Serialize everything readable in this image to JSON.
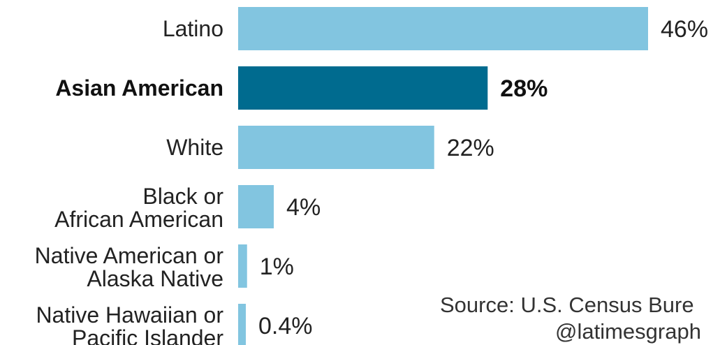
{
  "chart_data": {
    "type": "bar",
    "orientation": "horizontal",
    "categories": [
      [
        "Latino"
      ],
      [
        "Asian American"
      ],
      [
        "White"
      ],
      [
        "Black or",
        "African American"
      ],
      [
        "Native American or",
        "Alaska Native"
      ],
      [
        "Native Hawaiian or",
        "Pacific Islander"
      ]
    ],
    "values": [
      46,
      28,
      22,
      4,
      1,
      0.4
    ],
    "value_labels": [
      "46%",
      "28%",
      "22%",
      "4%",
      "1%",
      "0.4%"
    ],
    "highlight_index": 1,
    "xlim": [
      0,
      46
    ],
    "grid": false,
    "colors": {
      "default": "#82c5e0",
      "highlight": "#006b8f"
    }
  },
  "source": {
    "line1": "Source: U.S. Census Bure",
    "line2": "@latimesgraph"
  }
}
